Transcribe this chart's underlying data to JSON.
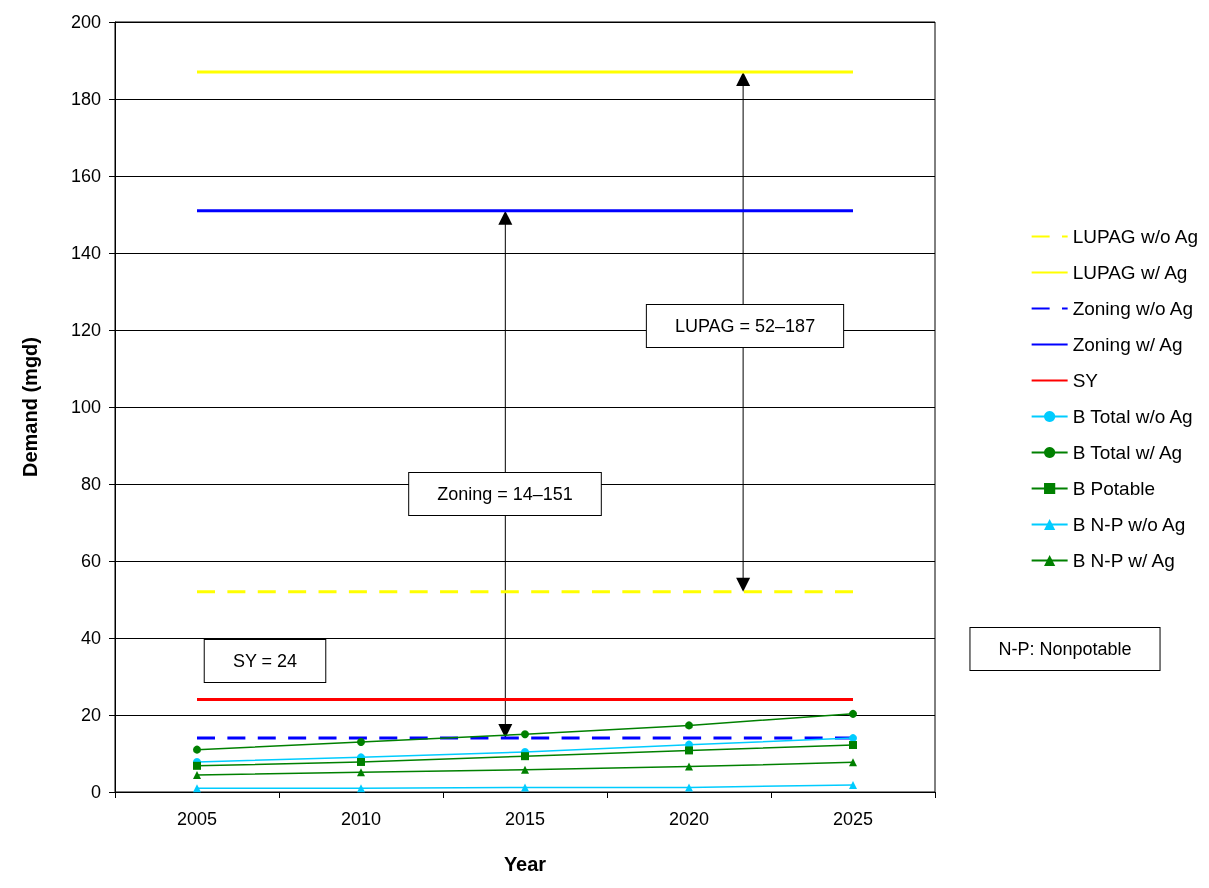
{
  "chart_data": {
    "type": "line",
    "xlabel": "Year",
    "ylabel": "Demand (mgd)",
    "categories": [
      "2005",
      "2010",
      "2015",
      "2020",
      "2025"
    ],
    "series": [
      {
        "name": "LUPAG w/o Ag",
        "color": "#ffff00",
        "values": [
          52,
          52,
          52,
          52,
          52
        ],
        "line_style": "dashed",
        "marker": "none"
      },
      {
        "name": "LUPAG w/ Ag",
        "color": "#ffff00",
        "values": [
          187,
          187,
          187,
          187,
          187
        ],
        "line_style": "solid",
        "marker": "none"
      },
      {
        "name": "Zoning w/o Ag",
        "color": "#0000ff",
        "values": [
          14,
          14,
          14,
          14,
          14
        ],
        "line_style": "dashed",
        "marker": "none"
      },
      {
        "name": "Zoning w/ Ag",
        "color": "#0000ff",
        "values": [
          151,
          151,
          151,
          151,
          151
        ],
        "line_style": "solid",
        "marker": "none"
      },
      {
        "name": "SY",
        "color": "#ff0000",
        "values": [
          24,
          24,
          24,
          24,
          24
        ],
        "line_style": "solid",
        "marker": "none"
      },
      {
        "name": "B Total w/o Ag",
        "color": "#00ccff",
        "values": [
          7.8,
          9,
          10.4,
          12.3,
          14
        ],
        "line_style": "solid",
        "marker": "circle"
      },
      {
        "name": "B Total w/ Ag",
        "color": "#008000",
        "values": [
          11,
          13,
          15,
          17.3,
          20.3
        ],
        "line_style": "solid",
        "marker": "circle"
      },
      {
        "name": "B Potable",
        "color": "#008000",
        "values": [
          6.8,
          7.8,
          9.3,
          10.8,
          12.2
        ],
        "line_style": "solid",
        "marker": "square"
      },
      {
        "name": "B N-P w/o Ag",
        "color": "#00ccff",
        "values": [
          1,
          1,
          1.2,
          1.2,
          1.8
        ],
        "line_style": "solid",
        "marker": "triangle"
      },
      {
        "name": "B N-P w/ Ag",
        "color": "#008000",
        "values": [
          4.4,
          5.1,
          5.8,
          6.6,
          7.7
        ],
        "line_style": "solid",
        "marker": "triangle"
      }
    ],
    "ylim": [
      0,
      200
    ],
    "yticks": [
      0,
      20,
      40,
      60,
      80,
      100,
      120,
      140,
      160,
      180,
      200
    ],
    "grid": "y",
    "legend": "right",
    "annotations": [
      "SY = 24",
      "Zoning = 14–151",
      "LUPAG = 52–187",
      "N-P: Nonpotable"
    ]
  }
}
